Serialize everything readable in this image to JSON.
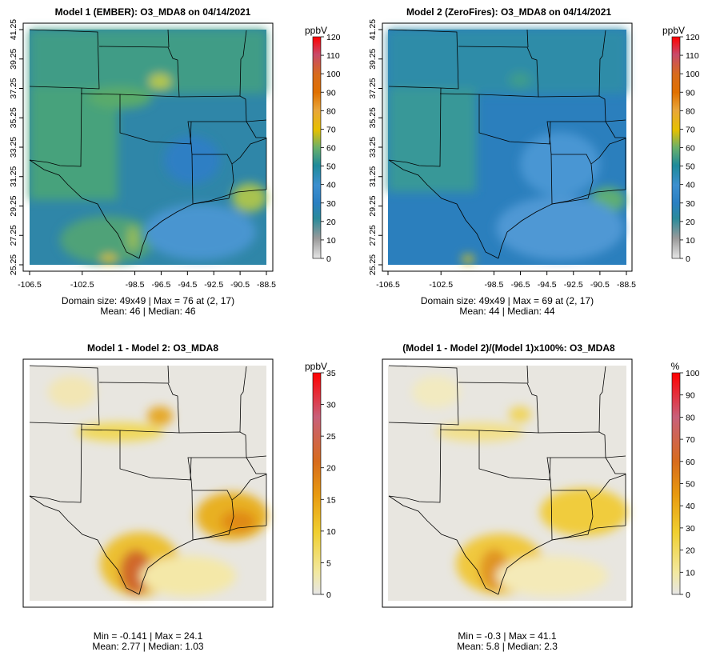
{
  "chart_data": [
    {
      "type": "heatmap",
      "title": "Model 1 (EMBER): O3_MDA8 on 04/14/2021",
      "x_ticks": [
        "-106.5",
        "-102.5",
        "-98.5",
        "-96.5",
        "-94.5",
        "-92.5",
        "-90.5",
        "-88.5"
      ],
      "y_ticks": [
        "25.25",
        "27.25",
        "29.25",
        "31.25",
        "33.25",
        "35.25",
        "37.25",
        "39.25",
        "41.25"
      ],
      "xlim": [
        -106.5,
        -88.5
      ],
      "ylim": [
        25.25,
        41.25
      ],
      "colorbar": {
        "unit": "ppbV",
        "range": [
          0,
          120
        ],
        "ticks": [
          "0",
          "10",
          "20",
          "30",
          "40",
          "50",
          "60",
          "70",
          "80",
          "90",
          "100",
          "110",
          "120"
        ],
        "palette": "gray-green-blue-teal-yellow-orange-red"
      },
      "stats_lines": [
        "Domain size: 49x49 | Max = 76 at (2, 17)",
        "Mean: 46 |  Median: 46"
      ],
      "summary": {
        "domain_size": "49x49",
        "max": 76,
        "max_cell": [
          2,
          17
        ],
        "mean": 46,
        "median": 46
      }
    },
    {
      "type": "heatmap",
      "title": "Model 2 (ZeroFires): O3_MDA8 on 04/14/2021",
      "x_ticks": [
        "-106.5",
        "-102.5",
        "-98.5",
        "-96.5",
        "-94.5",
        "-92.5",
        "-90.5",
        "-88.5"
      ],
      "y_ticks": [
        "25.25",
        "27.25",
        "29.25",
        "31.25",
        "33.25",
        "35.25",
        "37.25",
        "39.25",
        "41.25"
      ],
      "xlim": [
        -106.5,
        -88.5
      ],
      "ylim": [
        25.25,
        41.25
      ],
      "colorbar": {
        "unit": "ppbV",
        "range": [
          0,
          120
        ],
        "ticks": [
          "0",
          "10",
          "20",
          "30",
          "40",
          "50",
          "60",
          "70",
          "80",
          "90",
          "100",
          "110",
          "120"
        ],
        "palette": "gray-green-blue-teal-yellow-orange-red"
      },
      "stats_lines": [
        "Domain size: 49x49 | Max = 69 at (2, 17)",
        "Mean: 44 |  Median: 44"
      ],
      "summary": {
        "domain_size": "49x49",
        "max": 69,
        "max_cell": [
          2,
          17
        ],
        "mean": 44,
        "median": 44
      }
    },
    {
      "type": "heatmap",
      "title": "Model 1 - Model 2: O3_MDA8",
      "colorbar": {
        "unit": "ppbV",
        "range": [
          0,
          35
        ],
        "ticks": [
          "0",
          "5",
          "10",
          "15",
          "20",
          "25",
          "30",
          "35"
        ],
        "palette": "gray-yellow-orange-red"
      },
      "stats_lines": [
        "Min = -0.141 | Max = 24.1",
        "Mean: 2.77 |  Median: 1.03"
      ],
      "summary": {
        "min": -0.141,
        "max": 24.1,
        "mean": 2.77,
        "median": 1.03
      }
    },
    {
      "type": "heatmap",
      "title": "(Model 1 - Model 2)/(Model 1)x100%: O3_MDA8",
      "colorbar": {
        "unit": "%",
        "range": [
          0,
          100
        ],
        "ticks": [
          "0",
          "10",
          "20",
          "30",
          "40",
          "50",
          "60",
          "70",
          "80",
          "90",
          "100"
        ],
        "palette": "gray-yellow-orange-red"
      },
      "stats_lines": [
        "Min = -0.3 | Max = 41.1",
        "Mean: 5.8 |  Median: 2.3"
      ],
      "summary": {
        "min": -0.3,
        "max": 41.1,
        "mean": 5.8,
        "median": 2.3
      }
    }
  ],
  "colors": {
    "background": "#ffffff",
    "frame": "#000000",
    "conc_scale": [
      "#e6e6e6",
      "#9a9a9a",
      "#1e9a8c",
      "#3d8ac8",
      "#2a7fc2",
      "#1f8a9a",
      "#6ab06a",
      "#e6c000",
      "#e8a53a",
      "#e07000",
      "#d23030",
      "#ff0000"
    ],
    "diff_scale": [
      "#e6e6e6",
      "#f2e8a0",
      "#f0cf30",
      "#e89a10",
      "#d76b1c",
      "#c85a50",
      "#ff0000"
    ],
    "borders": "#000000"
  }
}
